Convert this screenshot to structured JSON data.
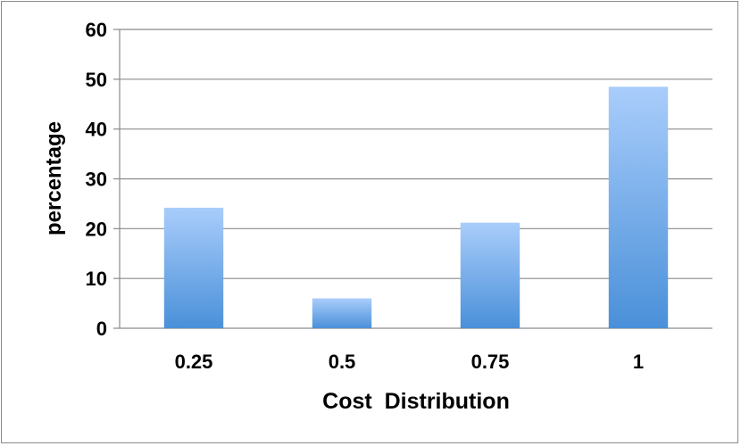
{
  "chart_data": {
    "type": "bar",
    "title": "",
    "xlabel": "Cost  Distribution",
    "ylabel": "percentage",
    "categories": [
      "0.25",
      "0.5",
      "0.75",
      "1"
    ],
    "values": [
      24.2,
      6,
      21.2,
      48.5
    ],
    "ylim": [
      0,
      60
    ],
    "yticks": [
      0,
      10,
      20,
      30,
      40,
      50,
      60
    ],
    "ytick_labels": [
      "0",
      "10",
      "20",
      "30",
      "40",
      "50",
      "60"
    ],
    "grid": true,
    "legend": "none",
    "colors": {
      "bar_top": "#a9cdfb",
      "bar_bottom": "#4a90d9",
      "grid": "#8a8a8a",
      "axis": "#8a8a8a"
    }
  }
}
